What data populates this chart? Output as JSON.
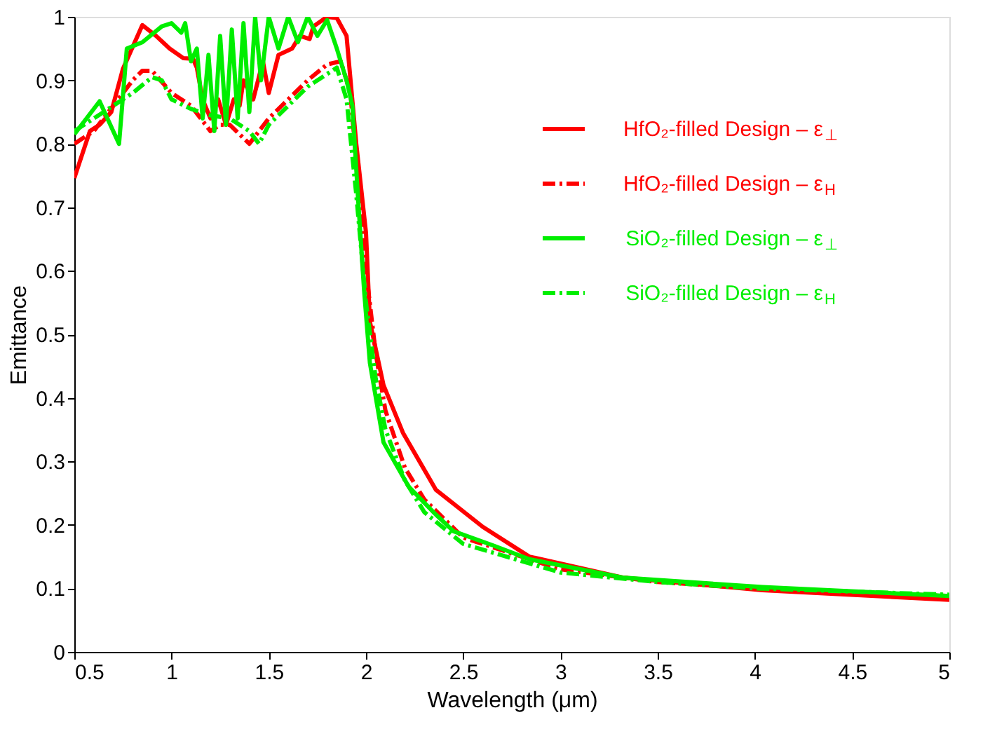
{
  "chart_data": {
    "type": "line",
    "xlabel": "Wavelength (μm)",
    "ylabel": "Emittance",
    "xlim": [
      0.5,
      5
    ],
    "xticks": [
      0.5,
      1,
      1.5,
      2,
      2.5,
      3,
      3.5,
      4,
      4.5,
      5
    ],
    "ylim": [
      0,
      1
    ],
    "yticks": [
      0,
      0.1,
      0.2,
      0.3,
      0.4,
      0.5,
      0.6,
      0.7,
      0.8,
      0.9,
      1
    ],
    "grid": false,
    "legend": "top right",
    "marker": "none",
    "series": [
      {
        "name": "HfO₂-filled Design  – ε$_{⊥}$",
        "color": "#ff0000",
        "line_style": "solid",
        "x": [
          0.5,
          0.58,
          0.63,
          0.69,
          0.75,
          0.85,
          0.92,
          0.99,
          1.06,
          1.11,
          1.13,
          1.16,
          1.2,
          1.24,
          1.28,
          1.32,
          1.35,
          1.37,
          1.42,
          1.47,
          1.5,
          1.55,
          1.62,
          1.66,
          1.71,
          1.73,
          1.8,
          1.85,
          1.9,
          1.95,
          2.0,
          2.02,
          2.09,
          2.19,
          2.36,
          2.6,
          2.84,
          3.32,
          4.04,
          5.0
        ],
        "values": [
          0.746,
          0.82,
          0.83,
          0.85,
          0.918,
          0.987,
          0.97,
          0.95,
          0.935,
          0.934,
          0.92,
          0.87,
          0.84,
          0.87,
          0.83,
          0.87,
          0.86,
          0.9,
          0.87,
          0.93,
          0.88,
          0.94,
          0.95,
          0.97,
          0.965,
          0.985,
          1.0,
          0.998,
          0.97,
          0.8,
          0.66,
          0.52,
          0.42,
          0.345,
          0.255,
          0.197,
          0.15,
          0.117,
          0.097,
          0.082
        ]
      },
      {
        "name": "HfO₂-filled Design  – ε$_{H}$",
        "color": "#ff0000",
        "line_style": "dashdot",
        "x": [
          0.5,
          0.6,
          0.7,
          0.8,
          0.85,
          0.9,
          1.0,
          1.1,
          1.2,
          1.25,
          1.3,
          1.4,
          1.45,
          1.5,
          1.6,
          1.7,
          1.8,
          1.87,
          1.92,
          1.97,
          2.0,
          2.05,
          2.1,
          2.2,
          2.3,
          2.5,
          3.0,
          3.5,
          4.0,
          5.0
        ],
        "values": [
          0.8,
          0.82,
          0.86,
          0.9,
          0.915,
          0.915,
          0.88,
          0.86,
          0.82,
          0.83,
          0.83,
          0.8,
          0.82,
          0.84,
          0.87,
          0.9,
          0.925,
          0.93,
          0.88,
          0.7,
          0.6,
          0.47,
          0.38,
          0.29,
          0.24,
          0.18,
          0.13,
          0.11,
          0.1,
          0.088
        ]
      },
      {
        "name": "SiO₂-filled Design  – ε$_{⊥}$",
        "color": "#00ee00",
        "line_style": "solid",
        "x": [
          0.5,
          0.63,
          0.73,
          0.77,
          0.85,
          0.95,
          1.0,
          1.05,
          1.07,
          1.1,
          1.13,
          1.16,
          1.19,
          1.22,
          1.25,
          1.28,
          1.31,
          1.34,
          1.37,
          1.4,
          1.43,
          1.46,
          1.5,
          1.55,
          1.6,
          1.65,
          1.7,
          1.75,
          1.8,
          1.85,
          1.9,
          1.93,
          1.96,
          1.99,
          2.02,
          2.09,
          2.22,
          2.36,
          2.45,
          2.65,
          2.84,
          3.32,
          4.04,
          5.0
        ],
        "values": [
          0.815,
          0.867,
          0.8,
          0.95,
          0.96,
          0.985,
          0.99,
          0.975,
          0.99,
          0.93,
          0.95,
          0.84,
          0.94,
          0.82,
          0.97,
          0.83,
          0.98,
          0.84,
          0.99,
          0.85,
          1.0,
          0.9,
          1.0,
          0.95,
          1.0,
          0.96,
          1.0,
          0.97,
          0.995,
          0.95,
          0.9,
          0.86,
          0.71,
          0.57,
          0.455,
          0.33,
          0.26,
          0.216,
          0.19,
          0.168,
          0.146,
          0.117,
          0.102,
          0.088
        ]
      },
      {
        "name": "SiO₂-filled Design  – ε$_{H}$",
        "color": "#00ee00",
        "line_style": "dashdot",
        "x": [
          0.5,
          0.6,
          0.7,
          0.8,
          0.9,
          0.95,
          1.0,
          1.1,
          1.2,
          1.3,
          1.4,
          1.45,
          1.5,
          1.6,
          1.7,
          1.8,
          1.85,
          1.9,
          1.95,
          2.0,
          2.05,
          2.1,
          2.2,
          2.3,
          2.5,
          3.0,
          3.5,
          4.0,
          5.0
        ],
        "values": [
          0.82,
          0.84,
          0.86,
          0.88,
          0.905,
          0.9,
          0.87,
          0.855,
          0.845,
          0.84,
          0.82,
          0.8,
          0.83,
          0.86,
          0.89,
          0.91,
          0.92,
          0.87,
          0.72,
          0.55,
          0.43,
          0.35,
          0.27,
          0.22,
          0.17,
          0.125,
          0.11,
          0.1,
          0.09
        ]
      }
    ]
  }
}
